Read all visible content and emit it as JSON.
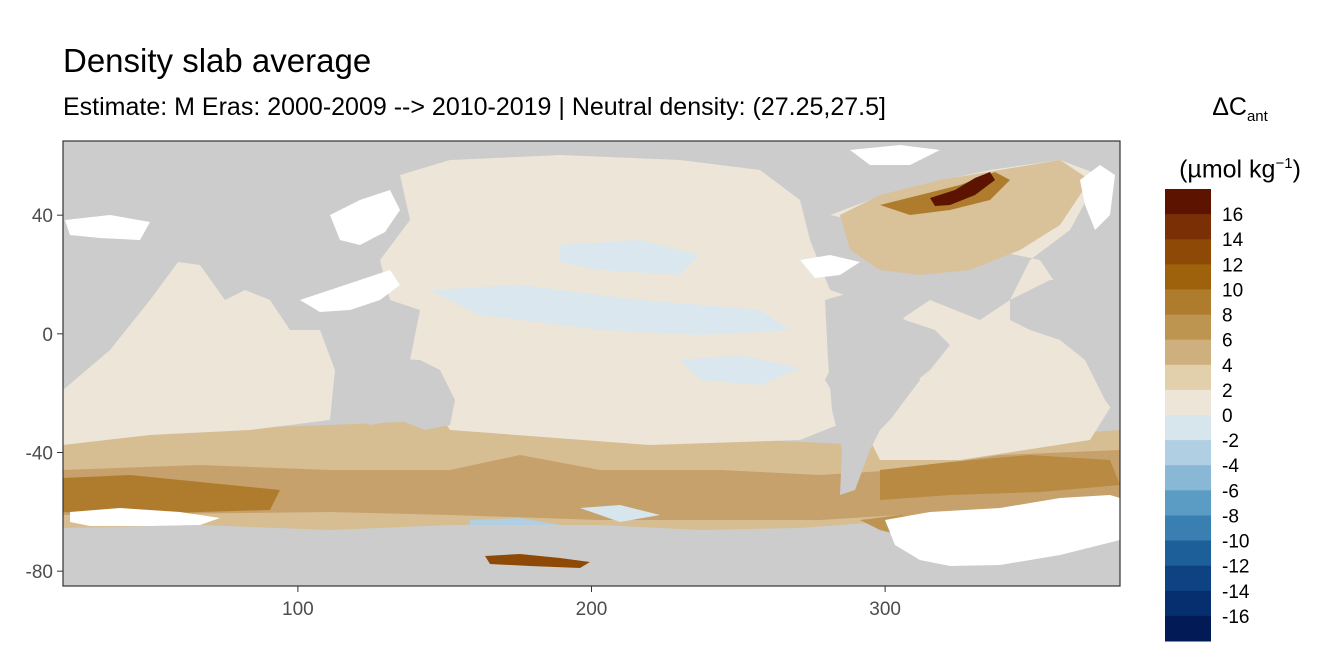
{
  "title": "Density slab average",
  "subtitle": "Estimate: M Eras: 2000-2009 --> 2010-2019 | Neutral density: (27.25,27.5]",
  "x_axis": {
    "ticks": [
      100,
      200,
      300
    ],
    "range": [
      20,
      380
    ]
  },
  "y_axis": {
    "ticks": [
      40,
      0,
      -40,
      -80
    ],
    "range": [
      -85,
      65
    ]
  },
  "legend": {
    "title_main": "ΔC",
    "title_sub": "ant",
    "unit_open": "(µmol kg",
    "unit_sup": "−1",
    "unit_close": ")",
    "labels": [
      "16",
      "14",
      "12",
      "10",
      "8",
      "6",
      "4",
      "2",
      "0",
      "-2",
      "-4",
      "-6",
      "-8",
      "-10",
      "-12",
      "-14",
      "-16"
    ],
    "colors": [
      "#5c1400",
      "#7a3004",
      "#8f4907",
      "#9e610c",
      "#ae7c2c",
      "#bd9550",
      "#ceb07e",
      "#e2cfab",
      "#ece5d8",
      "#d7e6ed",
      "#b0cfe2",
      "#88b8d5",
      "#5b9cc4",
      "#3a7fb1",
      "#1d5f98",
      "#0d4382",
      "#052f6e",
      "#021a55"
    ]
  },
  "colors": {
    "land": "#cccccc",
    "ocean_base": "#ece5d8",
    "panel_border": "#333333"
  }
}
